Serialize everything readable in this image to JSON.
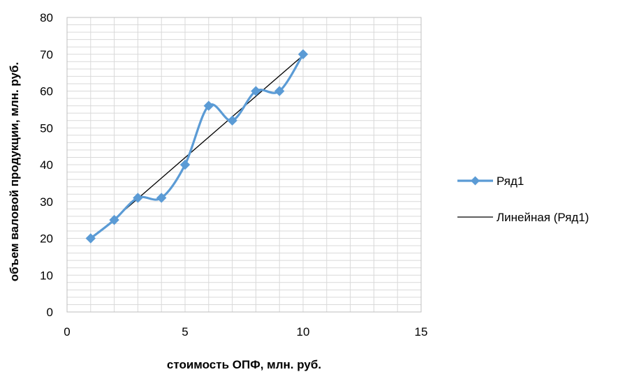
{
  "chart_data": {
    "type": "scatter",
    "title": "",
    "xlabel": "стоимость ОПФ, млн. руб.",
    "ylabel": "объем валовой продукции, млн. руб.",
    "xlim": [
      0,
      15
    ],
    "ylim": [
      0,
      80
    ],
    "xticks": [
      0,
      5,
      10,
      15
    ],
    "yticks": [
      0,
      10,
      20,
      30,
      40,
      50,
      60,
      70,
      80
    ],
    "x_minor_step": 1,
    "y_minor_step": 2,
    "grid": true,
    "legend_position": "right",
    "series": [
      {
        "name": "Ряд1",
        "style": "smoothed line with diamond markers",
        "color": "#5b9bd5",
        "x": [
          1,
          2,
          3,
          4,
          5,
          6,
          7,
          8,
          9,
          10
        ],
        "y": [
          20,
          25,
          31,
          31,
          40,
          56,
          52,
          60,
          60,
          70
        ]
      },
      {
        "name": "Линейная (Ряд1)",
        "style": "linear trendline",
        "color": "#000000",
        "x": [
          1,
          10
        ],
        "y": [
          19.7,
          69.7
        ]
      }
    ]
  }
}
